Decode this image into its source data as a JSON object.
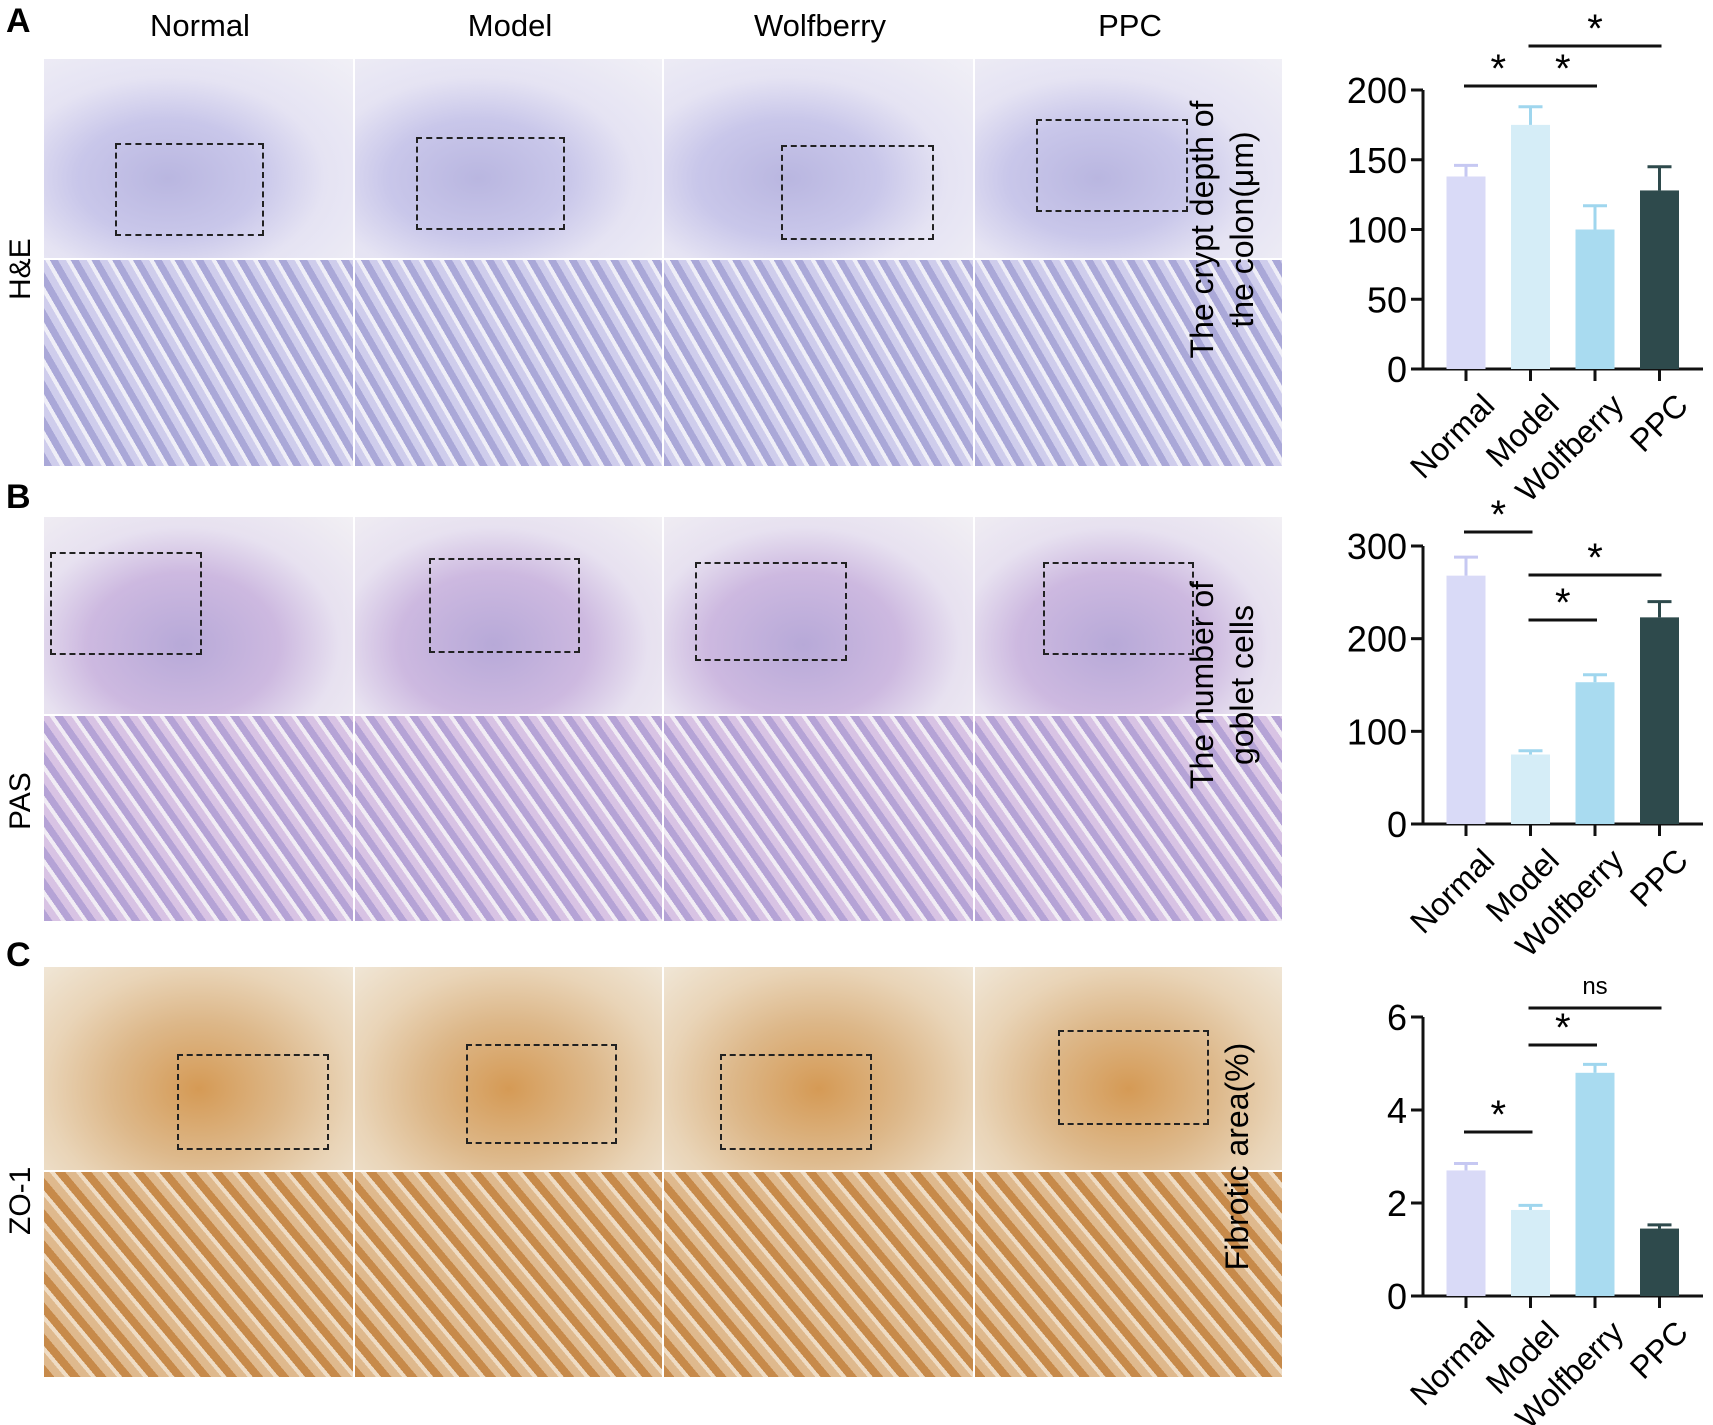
{
  "panels": {
    "A": "A",
    "B": "B",
    "C": "C"
  },
  "columns": [
    "Normal",
    "Model",
    "Wolfberry",
    "PPC"
  ],
  "rows": [
    "H&E",
    "PAS",
    "ZO-1"
  ],
  "colors": {
    "Normal": "#d9daf7",
    "Model": "#d5edf7",
    "Wolfberry": "#a9dbf0",
    "PPC": "#2e4a4c"
  },
  "chart_data": [
    {
      "type": "bar",
      "ylabel": "The crypt depth of the colon(μm)",
      "ylabel_lines": [
        "The crypt depth of",
        "the colon(μm)"
      ],
      "categories": [
        "Normal",
        "Model",
        "Wolfberry",
        "PPC"
      ],
      "values": [
        138,
        175,
        100,
        128
      ],
      "errors": [
        8,
        13,
        17,
        17
      ],
      "ylim": [
        0,
        200
      ],
      "yticks": [
        0,
        50,
        100,
        150,
        200
      ],
      "significance": [
        {
          "from": "Normal",
          "to": "Model",
          "label": "*"
        },
        {
          "from": "Model",
          "to": "Wolfberry",
          "label": "*"
        },
        {
          "from": "Model",
          "to": "PPC",
          "label": "*"
        }
      ]
    },
    {
      "type": "bar",
      "ylabel": "The number of goblet cells",
      "ylabel_lines": [
        "The number of",
        "goblet cells"
      ],
      "categories": [
        "Normal",
        "Model",
        "Wolfberry",
        "PPC"
      ],
      "values": [
        268,
        75,
        153,
        223
      ],
      "errors": [
        20,
        4,
        8,
        17
      ],
      "ylim": [
        0,
        300
      ],
      "yticks": [
        0,
        100,
        200,
        300
      ],
      "significance": [
        {
          "from": "Normal",
          "to": "Model",
          "label": "*"
        },
        {
          "from": "Model",
          "to": "Wolfberry",
          "label": "*"
        },
        {
          "from": "Model",
          "to": "PPC",
          "label": "*"
        }
      ]
    },
    {
      "type": "bar",
      "ylabel": "Fibrotic area(%)",
      "ylabel_lines": [
        "Fibrotic area(%)"
      ],
      "categories": [
        "Normal",
        "Model",
        "Wolfberry",
        "PPC"
      ],
      "values": [
        2.7,
        1.85,
        4.8,
        1.45
      ],
      "errors": [
        0.15,
        0.1,
        0.18,
        0.08
      ],
      "ylim": [
        0,
        6
      ],
      "yticks": [
        0,
        2,
        4,
        6
      ],
      "significance": [
        {
          "from": "Normal",
          "to": "Model",
          "label": "*"
        },
        {
          "from": "Model",
          "to": "Wolfberry",
          "label": "*"
        },
        {
          "from": "Model",
          "to": "PPC",
          "label": "ns"
        }
      ]
    }
  ]
}
